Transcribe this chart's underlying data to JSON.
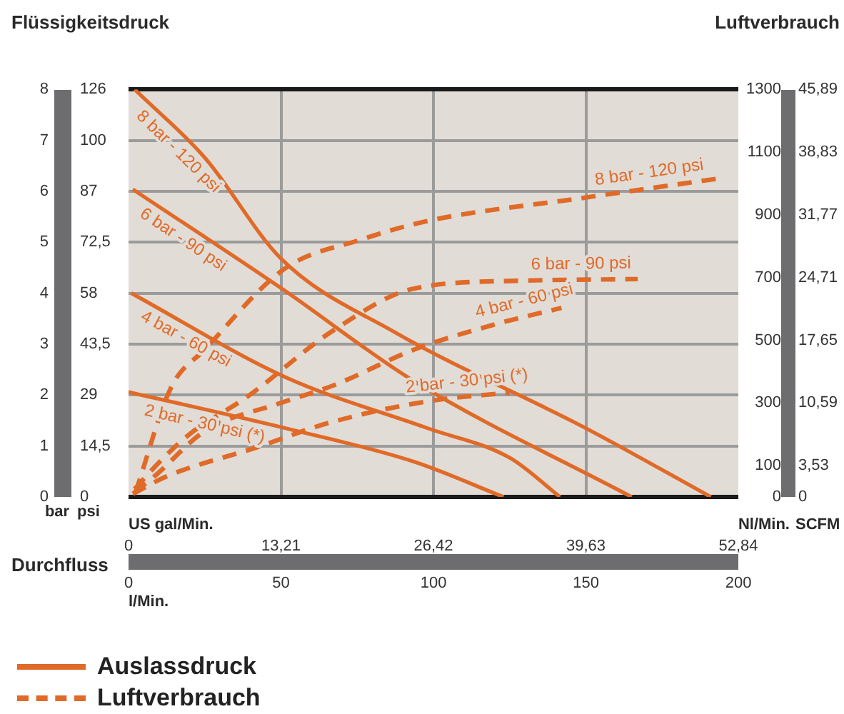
{
  "chart_data": {
    "type": "line",
    "annotations": [
      "Flüssigkeitsdruck",
      "Luftverbrauch",
      "Durchfluss",
      "Auslassdruck",
      "Luftverbrauch",
      "psi",
      "0",
      "14,5",
      "29",
      "43,5",
      "58",
      "72,5",
      "87",
      "100",
      "126"
    ],
    "xlabel": "l/Min.",
    "x2label": "US gal/Min.",
    "ylabel": "bar",
    "y2label": "Nl/Min.",
    "y3label": "SCFM",
    "xlim": [
      0,
      200
    ],
    "xticks": [
      0,
      50,
      100,
      150,
      200
    ],
    "x2lim": [
      0,
      52.84
    ],
    "x2ticks": [
      0,
      {
        "value": 13.21,
        "label": "13,21"
      },
      {
        "value": 26.42,
        "label": "26,42"
      },
      {
        "value": 39.63,
        "label": "39,63"
      },
      {
        "value": 52.84,
        "label": "52,84"
      }
    ],
    "ylim": [
      0,
      8
    ],
    "yticks": [
      0,
      1,
      2,
      3,
      4,
      5,
      6,
      7,
      8
    ],
    "y2lim": [
      0,
      1300
    ],
    "y2ticks": [
      0,
      100,
      300,
      500,
      700,
      900,
      1100,
      1300
    ],
    "y3lim": [
      0,
      45.89
    ],
    "y3ticks": [
      0,
      {
        "value": 3.53,
        "label": "3,53"
      },
      {
        "value": 10.59,
        "label": "10,59"
      },
      {
        "value": 17.65,
        "label": "17,65"
      },
      {
        "value": 24.71,
        "label": "24,71"
      },
      {
        "value": 31.77,
        "label": "31,77"
      },
      {
        "value": 38.83,
        "label": "38,83"
      },
      {
        "value": 45.89,
        "label": "45,89"
      }
    ],
    "grid": true,
    "series": [
      {
        "name": "8 bar - 120 psi",
        "color": "#e06a28",
        "line_style": "solid",
        "x": [
          2,
          25,
          50,
          87.4,
          150,
          191
        ],
        "values": [
          8,
          6.66,
          4.68,
          3.23,
          1.35,
          0
        ]
      },
      {
        "name": "6 bar - 90 psi",
        "color": "#e06a28",
        "line_style": "solid",
        "x": [
          1.4,
          50,
          93.7,
          165
        ],
        "values": [
          6.04,
          4.1,
          2.27,
          0
        ]
      },
      {
        "name": "4 bar - 60 psi",
        "color": "#e06a28",
        "line_style": "solid",
        "x": [
          0.9,
          51.5,
          98,
          125,
          141.5
        ],
        "values": [
          4,
          2.35,
          1.35,
          0.77,
          0
        ]
      },
      {
        "name": "2 bar - 30 psi (*)",
        "color": "#e06a28",
        "line_style": "solid",
        "x": [
          0,
          51.5,
          93.7,
          123
        ],
        "values": [
          2.06,
          1.35,
          0.69,
          0
        ]
      },
      {
        "name": "8 bar - 120 psi",
        "color": "#e06a28",
        "line_style": "dashed",
        "axis": "y2",
        "x": [
          2.3,
          14,
          25,
          51.5,
          76,
          98,
          150,
          193
        ],
        "values": [
          15,
          350,
          470,
          730,
          820,
          880,
          955,
          1015
        ]
      },
      {
        "name": "6 bar - 90 psi",
        "color": "#e06a28",
        "line_style": "dashed",
        "axis": "y2",
        "x": [
          2,
          10,
          20,
          39,
          67,
          93.7,
          130,
          167
        ],
        "values": [
          25,
          110,
          200,
          320,
          530,
          665,
          690,
          695
        ]
      },
      {
        "name": "4 bar - 60 psi",
        "color": "#e06a28",
        "line_style": "dashed",
        "axis": "y2",
        "x": [
          2,
          9,
          25,
          50,
          67,
          93.7,
          120,
          142
        ],
        "values": [
          15,
          70,
          210,
          300,
          355,
          470,
          550,
          603
        ]
      },
      {
        "name": "2 bar - 30 psi (*)",
        "color": "#e06a28",
        "line_style": "dashed",
        "axis": "y2",
        "x": [
          1.4,
          12.6,
          42,
          65.6,
          98,
          125
        ],
        "values": [
          10,
          66,
          158,
          236,
          305,
          333
        ]
      }
    ]
  }
}
